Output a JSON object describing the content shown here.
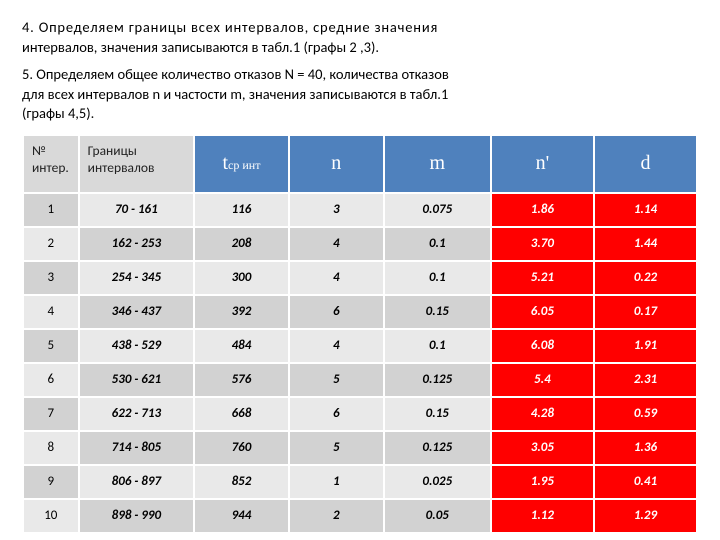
{
  "paragraphs": {
    "p1_lead": "4. Определяем границы всех интервалов, средние значения",
    "p1_rest": "интервалов, значения записываются в табл.1 (графы 2 ,3).",
    "p2_a": "5. Определяем общее количество отказов N = 40, количества отказов",
    "p2_b": "для всех интервалов n и частости m, значения записываются в табл.1",
    "p2_c": "(графы 4,5)."
  },
  "table": {
    "headers": {
      "idx_l1": "№",
      "idx_l2": "интер.",
      "range_l1": "Границы",
      "range_l2": "интервалов",
      "t_main": "t",
      "t_sub": "ср инт",
      "n": "n",
      "m": "m",
      "np": "n'",
      "d": "d"
    },
    "header_colors": {
      "gray_bg": "#d9d9d9",
      "blue_bg": "#4f81bd",
      "blue_text": "#ffffff",
      "red_bg": "#ff0000",
      "red_text": "#ffffff",
      "alt_light": "#e9e9e9",
      "alt_dark": "#d2d2d2"
    },
    "rows": [
      {
        "idx": "1",
        "range": "70 - 161",
        "t": "116",
        "n": "3",
        "m": "0.075",
        "np": "1.86",
        "d": "1.14"
      },
      {
        "idx": "2",
        "range": "162 - 253",
        "t": "208",
        "n": "4",
        "m": "0.1",
        "np": "3.70",
        "d": "1.44"
      },
      {
        "idx": "3",
        "range": "254 - 345",
        "t": "300",
        "n": "4",
        "m": "0.1",
        "np": "5.21",
        "d": "0.22"
      },
      {
        "idx": "4",
        "range": "346 - 437",
        "t": "392",
        "n": "6",
        "m": "0.15",
        "np": "6.05",
        "d": "0.17"
      },
      {
        "idx": "5",
        "range": "438 - 529",
        "t": "484",
        "n": "4",
        "m": "0.1",
        "np": "6.08",
        "d": "1.91"
      },
      {
        "idx": "6",
        "range": "530 - 621",
        "t": "576",
        "n": "5",
        "m": "0.125",
        "np": "5.4",
        "d": "2.31"
      },
      {
        "idx": "7",
        "range": "622 - 713",
        "t": "668",
        "n": "6",
        "m": "0.15",
        "np": "4.28",
        "d": "0.59"
      },
      {
        "idx": "8",
        "range": "714 - 805",
        "t": "760",
        "n": "5",
        "m": "0.125",
        "np": "3.05",
        "d": "1.36"
      },
      {
        "idx": "9",
        "range": "806 - 897",
        "t": "852",
        "n": "1",
        "m": "0.025",
        "np": "1.95",
        "d": "0.41"
      },
      {
        "idx": "10",
        "range": "898 - 990",
        "t": "944",
        "n": "2",
        "m": "0.05",
        "np": "1.12",
        "d": "1.29"
      }
    ]
  }
}
